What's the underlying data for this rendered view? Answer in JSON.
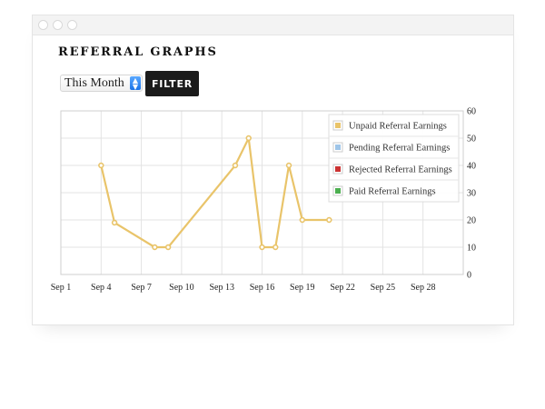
{
  "page": {
    "title": "REFERRAL GRAPHS"
  },
  "filter": {
    "period_selected": "This Month",
    "button_label": "FILTER"
  },
  "colors": {
    "unpaid": "#e9c46a",
    "pending": "#9ec5e8",
    "rejected": "#cc3333",
    "paid": "#4caf50",
    "grid": "#e3e3e3"
  },
  "icons": {
    "select_arrow": "up-down-chevron-icon"
  },
  "chart_data": {
    "type": "line",
    "x_ticks": [
      "Sep 1",
      "Sep 4",
      "Sep 7",
      "Sep 10",
      "Sep 13",
      "Sep 16",
      "Sep 19",
      "Sep 22",
      "Sep 25",
      "Sep 28"
    ],
    "y_ticks": [
      "0",
      "10",
      "20",
      "30",
      "40",
      "50",
      "60"
    ],
    "xlim": [
      "Sep 1",
      "Sep 31"
    ],
    "ylim": [
      0,
      60
    ],
    "y_axis_side": "right",
    "grid": true,
    "legend_position": "top-right",
    "legend": [
      "Unpaid Referral Earnings",
      "Pending Referral Earnings",
      "Rejected Referral Earnings",
      "Paid Referral Earnings"
    ],
    "series": [
      {
        "name": "Unpaid Referral Earnings",
        "x": [
          "Sep 4",
          "Sep 5",
          "Sep 8",
          "Sep 9",
          "Sep 14",
          "Sep 15",
          "Sep 16",
          "Sep 17",
          "Sep 18",
          "Sep 19",
          "Sep 21"
        ],
        "y": [
          40,
          19,
          10,
          10,
          40,
          50,
          10,
          10,
          40,
          20,
          20
        ]
      }
    ]
  }
}
